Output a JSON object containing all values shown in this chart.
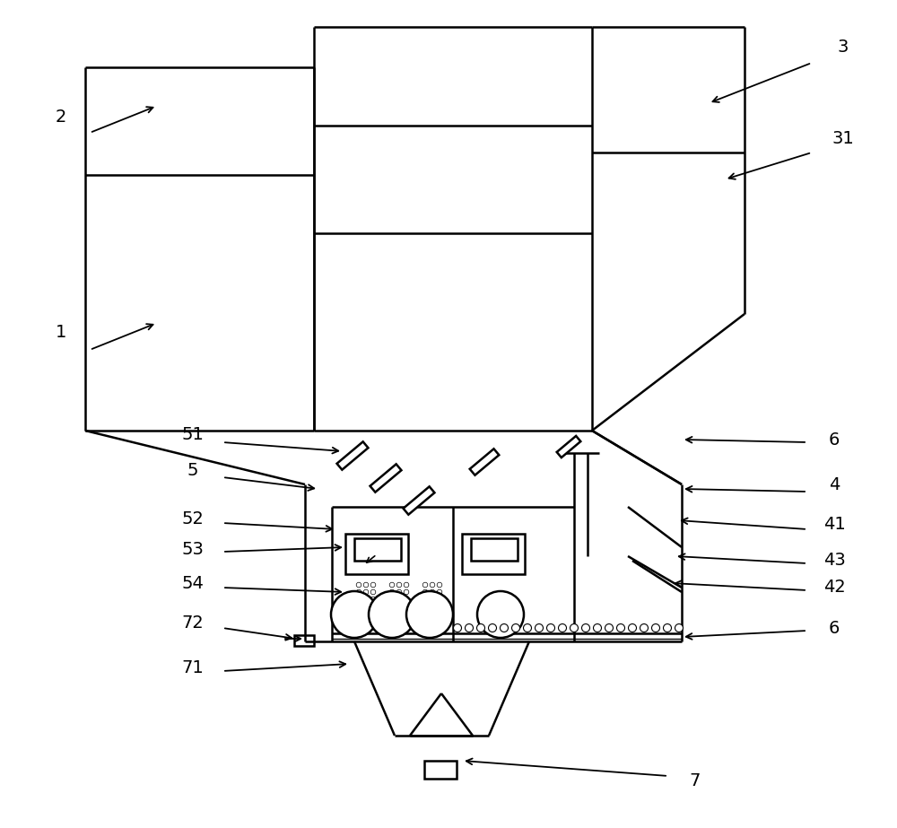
{
  "bg_color": "#ffffff",
  "line_color": "#000000",
  "lw": 1.8,
  "fig_width": 10.0,
  "fig_height": 9.23
}
